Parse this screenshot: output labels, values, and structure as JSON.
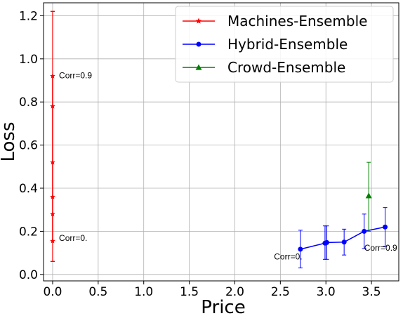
{
  "chart_data": {
    "type": "line",
    "xlabel": "Price",
    "ylabel": "Loss",
    "xlim": [
      -0.1,
      3.8
    ],
    "ylim": [
      -0.03,
      1.26
    ],
    "xticks": [
      0.0,
      0.5,
      1.0,
      1.5,
      2.0,
      2.5,
      3.0,
      3.5
    ],
    "xtick_labels": [
      "0.0",
      "0.5",
      "1.0",
      "1.5",
      "2.0",
      "2.5",
      "3.0",
      "3.5"
    ],
    "yticks": [
      0.0,
      0.2,
      0.4,
      0.6,
      0.8,
      1.0,
      1.2
    ],
    "ytick_labels": [
      "0.0",
      "0.2",
      "0.4",
      "0.6",
      "0.8",
      "1.0",
      "1.2"
    ],
    "grid": true,
    "legend_position": "top-right",
    "series": [
      {
        "name": "Machines-Ensemble",
        "color": "#ff0000",
        "marker": "star",
        "x": [
          0,
          0,
          0,
          0,
          0,
          0
        ],
        "y": [
          0.92,
          0.78,
          0.52,
          0.36,
          0.28,
          0.155
        ],
        "err_low": [
          0.06,
          0.06,
          0.06,
          0.06,
          0.06,
          0.06
        ],
        "err_high": [
          1.22,
          1.22,
          1.22,
          1.22,
          1.22,
          1.22
        ]
      },
      {
        "name": "Hybrid-Ensemble",
        "color": "#0000ff",
        "marker": "circle",
        "x": [
          2.72,
          2.99,
          3.01,
          3.2,
          3.42,
          3.65
        ],
        "y": [
          0.117,
          0.145,
          0.148,
          0.15,
          0.2,
          0.22
        ],
        "err_low": [
          0.03,
          0.07,
          0.07,
          0.09,
          0.12,
          0.13
        ],
        "err_high": [
          0.205,
          0.225,
          0.225,
          0.21,
          0.28,
          0.31
        ]
      },
      {
        "name": "Crowd-Ensemble",
        "color": "#008000",
        "marker": "triangle",
        "x": [
          3.47
        ],
        "y": [
          0.365
        ],
        "err_low": [
          0.2
        ],
        "err_high": [
          0.52
        ]
      }
    ],
    "annotations": [
      {
        "text": "Corr=0.9",
        "x": 0.07,
        "y": 0.91
      },
      {
        "text": "Corr=0.",
        "x": 0.07,
        "y": 0.155
      },
      {
        "text": "Corr=0.",
        "x": 2.43,
        "y": 0.07
      },
      {
        "text": "Corr=0.9",
        "x": 3.42,
        "y": 0.11
      }
    ]
  }
}
